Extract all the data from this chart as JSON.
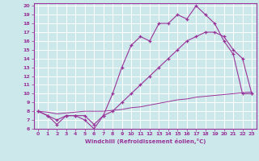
{
  "bg_color": "#cce8ea",
  "grid_color": "#ffffff",
  "line_color": "#993399",
  "xlabel": "Windchill (Refroidissement éolien,°C)",
  "xlim": [
    -0.5,
    23.5
  ],
  "ylim": [
    6,
    20.3
  ],
  "yticks": [
    6,
    7,
    8,
    9,
    10,
    11,
    12,
    13,
    14,
    15,
    16,
    17,
    18,
    19,
    20
  ],
  "xticks": [
    0,
    1,
    2,
    3,
    4,
    5,
    6,
    7,
    8,
    9,
    10,
    11,
    12,
    13,
    14,
    15,
    16,
    17,
    18,
    19,
    20,
    21,
    22,
    23
  ],
  "curve1_x": [
    0,
    1,
    2,
    3,
    4,
    5,
    6,
    7,
    8,
    9,
    10,
    11,
    12,
    13,
    14,
    15,
    16,
    17,
    18,
    19,
    20,
    21,
    22,
    23
  ],
  "curve1_y": [
    8,
    7.5,
    6.5,
    7.5,
    7.5,
    7.5,
    6.5,
    7.5,
    10,
    13,
    15.5,
    16.5,
    16,
    18,
    18,
    19,
    18.5,
    20,
    19,
    18,
    16,
    14.5,
    10,
    10
  ],
  "curve2_x": [
    0,
    1,
    2,
    3,
    4,
    5,
    6,
    7,
    8,
    9,
    10,
    11,
    12,
    13,
    14,
    15,
    16,
    17,
    18,
    19,
    20,
    21,
    22,
    23
  ],
  "curve2_y": [
    8,
    7.5,
    7,
    7.5,
    7.5,
    7,
    6,
    7.5,
    8,
    9,
    10,
    11,
    12,
    13,
    14,
    15,
    16,
    16.5,
    17,
    17,
    16.5,
    15,
    14,
    10
  ],
  "curve3_x": [
    0,
    1,
    2,
    3,
    4,
    5,
    6,
    7,
    8,
    9,
    10,
    11,
    12,
    13,
    14,
    15,
    16,
    17,
    18,
    19,
    20,
    21,
    22,
    23
  ],
  "curve3_y": [
    8,
    7.9,
    7.7,
    7.8,
    7.9,
    8.0,
    8.0,
    8.0,
    8.1,
    8.2,
    8.4,
    8.5,
    8.7,
    8.9,
    9.1,
    9.3,
    9.4,
    9.6,
    9.7,
    9.8,
    9.9,
    10.0,
    10.1,
    10.2
  ]
}
